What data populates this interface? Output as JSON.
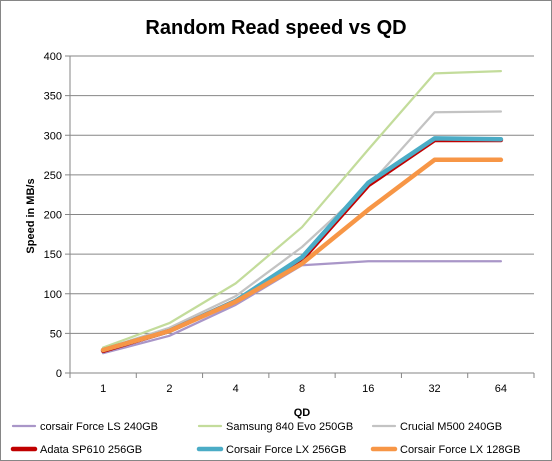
{
  "chart_data": {
    "type": "line",
    "title": "Random Read speed vs QD",
    "xlabel": "QD",
    "ylabel": "Speed in MB/s",
    "categories": [
      "1",
      "2",
      "4",
      "8",
      "16",
      "32",
      "64"
    ],
    "ylim": [
      0,
      400
    ],
    "yticks": [
      0,
      50,
      100,
      150,
      200,
      250,
      300,
      350,
      400
    ],
    "grid": true,
    "legend_position": "bottom",
    "series": [
      {
        "name": "corsair Force LS 240GB",
        "color": "#a996c8",
        "values": [
          25,
          47,
          86,
          136,
          141,
          141,
          141
        ],
        "weight": "thin"
      },
      {
        "name": "Samsung 840 Evo 250GB",
        "color": "#c3dc9b",
        "values": [
          32,
          63,
          113,
          184,
          282,
          378,
          381
        ],
        "weight": "thin"
      },
      {
        "name": "Crucial M500 240GB",
        "color": "#c3c3c3",
        "values": [
          30,
          57,
          97,
          159,
          236,
          329,
          330
        ],
        "weight": "thin"
      },
      {
        "name": "Adata SP610 256GB",
        "color": "#c00000",
        "values": [
          28,
          53,
          91,
          143,
          237,
          294,
          294
        ],
        "weight": "thick"
      },
      {
        "name": "Corsair Force LX 256GB",
        "color": "#4bacc6",
        "values": [
          29,
          53,
          91,
          146,
          240,
          296,
          295
        ],
        "weight": "thick"
      },
      {
        "name": "Corsair Force LX 128GB",
        "color": "#f79646",
        "values": [
          29,
          53,
          90,
          138,
          206,
          269,
          269
        ],
        "weight": "thick"
      }
    ]
  }
}
